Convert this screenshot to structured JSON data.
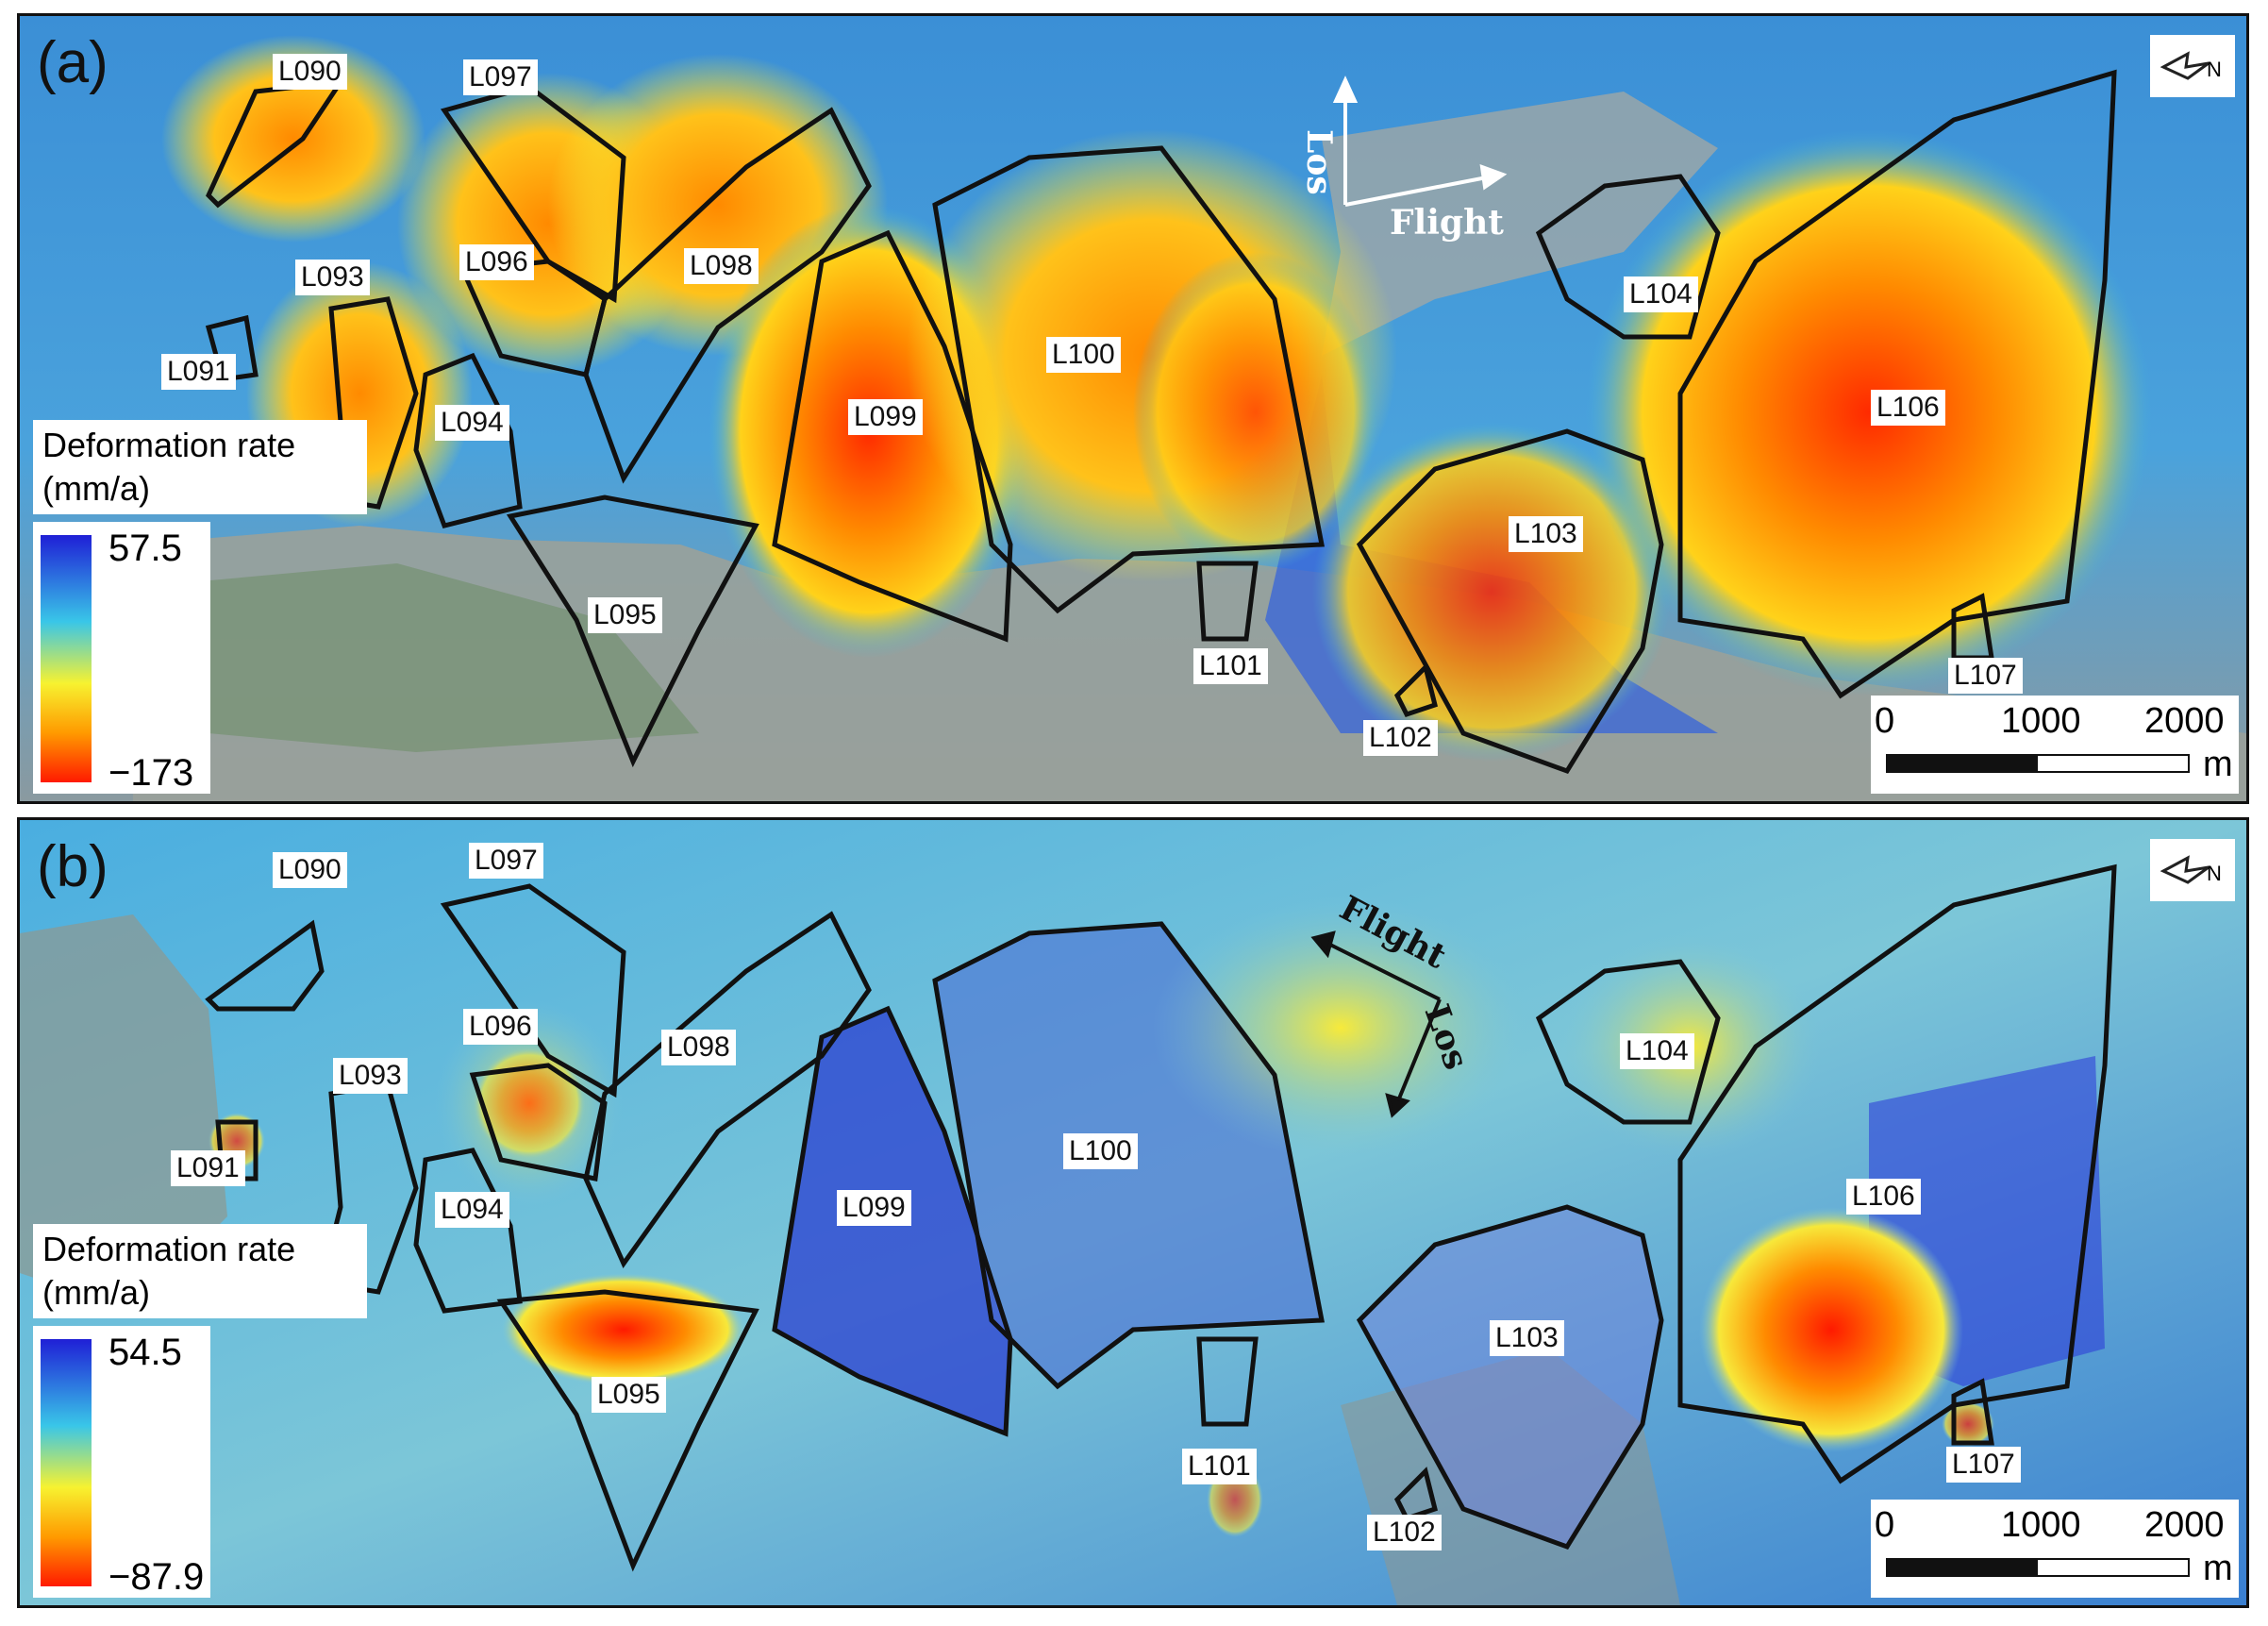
{
  "panels": [
    {
      "id": "a",
      "letter": "(a)",
      "legend_title_line1": "Deformation rate",
      "legend_title_line2": "(mm/a)",
      "legend_max": "57.5",
      "legend_min": "−173",
      "flight_label": "Flight",
      "los_label": "Los",
      "landslides": [
        "L090",
        "L091",
        "L093",
        "L094",
        "L095",
        "L096",
        "L097",
        "L098",
        "L099",
        "L100",
        "L101",
        "L102",
        "L103",
        "L104",
        "L106",
        "L107"
      ]
    },
    {
      "id": "b",
      "letter": "(b)",
      "legend_title_line1": "Deformation rate",
      "legend_title_line2": "(mm/a)",
      "legend_max": "54.5",
      "legend_min": "−87.9",
      "flight_label": "Flight",
      "los_label": "Los",
      "landslides": [
        "L090",
        "L091",
        "L093",
        "L094",
        "L095",
        "L096",
        "L097",
        "L098",
        "L099",
        "L100",
        "L101",
        "L102",
        "L103",
        "L104",
        "L106",
        "L107"
      ]
    }
  ],
  "scale_bar": {
    "ticks": [
      "0",
      "1000",
      "2000"
    ],
    "unit": "m"
  },
  "colors": {
    "ramp_top": "#1f1fd6",
    "ramp_upper": "#39c6e8",
    "ramp_mid": "#f7f230",
    "ramp_lower": "#ff9a00",
    "ramp_bottom": "#ff1a00",
    "outline": "#111111"
  }
}
